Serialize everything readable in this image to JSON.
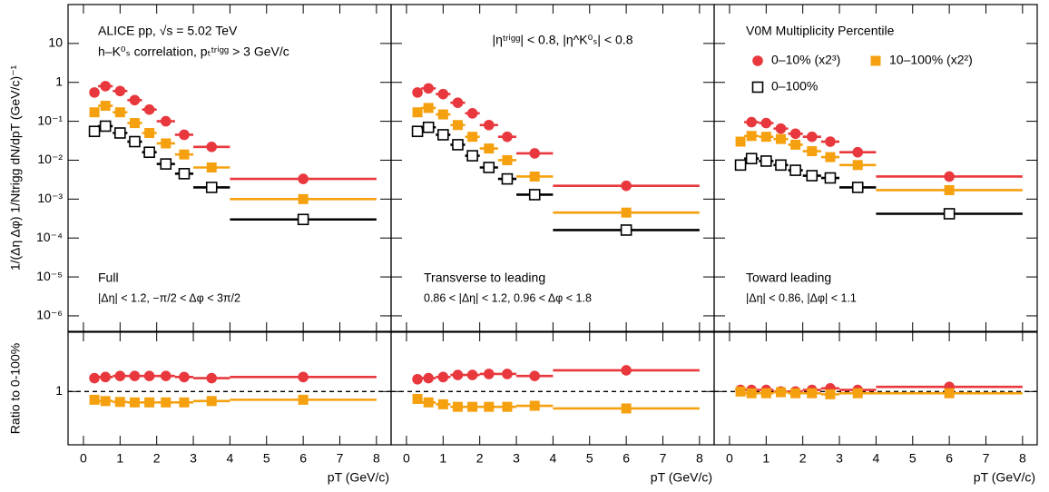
{
  "chart_data": [
    {
      "type": "errorbar",
      "log_y": true,
      "xlim": [
        -0.42,
        8.4
      ],
      "ylim": [
        4e-07,
        100
      ],
      "ylabel": "1/(Δη Δφ) 1/Ntrigg dN/dpT (GeV/c)⁻¹",
      "yticks": [
        {
          "value": 1e-06,
          "label": "10⁻⁶"
        },
        {
          "value": 1e-05,
          "label": "10⁻⁵"
        },
        {
          "value": 0.0001,
          "label": "10⁻⁴"
        },
        {
          "value": 0.001,
          "label": "10⁻³"
        },
        {
          "value": 0.01,
          "label": "10⁻²"
        },
        {
          "value": 0.1,
          "label": "10⁻¹"
        },
        1,
        10
      ],
      "annotations": [
        "ALICE pp, √s = 5.02 TeV",
        "h–K⁰ₛ correlation, pₜᵗʳⁱᵍᵍ > 3 GeV/c",
        "Full",
        "|Δη| < 1.2, −π/2 < Δφ < 3π/2"
      ],
      "bins": [
        0.2,
        0.4,
        0.8,
        1.2,
        1.6,
        2.0,
        2.5,
        3.0,
        4.0,
        8.0
      ],
      "x": [
        0.3,
        0.6,
        1.0,
        1.4,
        1.8,
        2.25,
        2.75,
        3.5,
        6.0
      ],
      "series": [
        {
          "color": "#e8383d",
          "marker": "circle",
          "values": [
            0.55,
            0.8,
            0.6,
            0.35,
            0.2,
            0.1,
            0.045,
            0.022,
            0.0033
          ]
        },
        {
          "color": "#f5a00f",
          "marker": "square",
          "values": [
            0.17,
            0.25,
            0.17,
            0.09,
            0.05,
            0.027,
            0.014,
            0.0065,
            0.001
          ]
        },
        {
          "color": "#000000",
          "marker": "open-square",
          "values": [
            0.055,
            0.075,
            0.05,
            0.03,
            0.016,
            0.008,
            0.0045,
            0.002,
            0.0003
          ]
        }
      ]
    },
    {
      "type": "errorbar",
      "log_y": true,
      "xlim": [
        -0.42,
        8.4
      ],
      "ylim": [
        4e-07,
        100
      ],
      "annotations": [
        "|ηᵗʳⁱᵍᵍ| < 0.8, |η^K⁰ₛ| < 0.8",
        "Transverse to leading",
        "0.86 < |Δη| < 1.2, 0.96 < Δφ < 1.8"
      ],
      "bins": [
        0.2,
        0.4,
        0.8,
        1.2,
        1.6,
        2.0,
        2.5,
        3.0,
        4.0,
        8.0
      ],
      "x": [
        0.3,
        0.6,
        1.0,
        1.4,
        1.8,
        2.25,
        2.75,
        3.5,
        6.0
      ],
      "series": [
        {
          "color": "#e8383d",
          "marker": "circle",
          "values": [
            0.55,
            0.7,
            0.5,
            0.3,
            0.16,
            0.08,
            0.04,
            0.015,
            0.0022
          ]
        },
        {
          "color": "#f5a00f",
          "marker": "square",
          "values": [
            0.17,
            0.22,
            0.15,
            0.08,
            0.04,
            0.02,
            0.01,
            0.0038,
            0.00045
          ]
        },
        {
          "color": "#000000",
          "marker": "open-square",
          "values": [
            0.055,
            0.07,
            0.045,
            0.025,
            0.013,
            0.0065,
            0.0033,
            0.0013,
            0.00016
          ]
        }
      ]
    },
    {
      "type": "errorbar",
      "log_y": true,
      "xlim": [
        -0.42,
        8.4
      ],
      "ylim": [
        4e-07,
        100
      ],
      "legend": "top-right",
      "annotations": [
        "V0M Multiplicity Percentile",
        "Toward leading",
        "|Δη| < 0.86, |Δφ| < 1.1"
      ],
      "bins": [
        0.2,
        0.4,
        0.8,
        1.2,
        1.6,
        2.0,
        2.5,
        3.0,
        4.0,
        8.0
      ],
      "x": [
        0.3,
        0.6,
        1.0,
        1.4,
        1.8,
        2.25,
        2.75,
        3.5,
        6.0
      ],
      "series": [
        {
          "name": "0–10% (x2³)",
          "color": "#e8383d",
          "marker": "circle",
          "values": [
            null,
            0.095,
            0.09,
            0.065,
            0.048,
            0.04,
            0.03,
            0.016,
            0.0038
          ]
        },
        {
          "name": "10–100% (x2²)",
          "color": "#f5a00f",
          "marker": "square",
          "values": [
            0.03,
            0.042,
            0.04,
            0.035,
            0.025,
            0.017,
            0.012,
            0.0075,
            0.0017
          ]
        },
        {
          "name": "0–100%",
          "color": "#000000",
          "marker": "open-square",
          "values": [
            0.0075,
            0.011,
            0.0095,
            0.0075,
            0.0055,
            0.004,
            0.0035,
            0.002,
            0.00042
          ]
        }
      ]
    },
    {
      "type": "errorbar",
      "log_y": true,
      "xlim": [
        -0.42,
        8.4
      ],
      "ylim": [
        0.2,
        6
      ],
      "ylabel": "Ratio to 0-100%",
      "yticks": [
        1
      ],
      "xlabel": "pT (GeV/c)",
      "xticks": [
        0,
        1,
        2,
        3,
        4,
        5,
        6,
        7,
        8
      ],
      "bins": [
        0.2,
        0.4,
        0.8,
        1.2,
        1.6,
        2.0,
        2.5,
        3.0,
        4.0,
        8.0
      ],
      "x": [
        0.3,
        0.6,
        1.0,
        1.4,
        1.8,
        2.25,
        2.75,
        3.5,
        6.0
      ],
      "series": [
        {
          "color": "#e8383d",
          "marker": "circle",
          "values": [
            1.5,
            1.55,
            1.6,
            1.6,
            1.6,
            1.6,
            1.55,
            1.5,
            1.55
          ]
        },
        {
          "color": "#f5a00f",
          "marker": "square",
          "values": [
            0.78,
            0.75,
            0.73,
            0.72,
            0.72,
            0.72,
            0.72,
            0.75,
            0.78
          ]
        }
      ]
    },
    {
      "type": "errorbar",
      "log_y": true,
      "xlim": [
        -0.42,
        8.4
      ],
      "ylim": [
        0.2,
        6
      ],
      "xlabel": "pT (GeV/c)",
      "xticks": [
        0,
        1,
        2,
        3,
        4,
        5,
        6,
        7,
        8
      ],
      "bins": [
        0.2,
        0.4,
        0.8,
        1.2,
        1.6,
        2.0,
        2.5,
        3.0,
        4.0,
        8.0
      ],
      "x": [
        0.3,
        0.6,
        1.0,
        1.4,
        1.8,
        2.25,
        2.75,
        3.5,
        6.0
      ],
      "series": [
        {
          "color": "#e8383d",
          "marker": "circle",
          "values": [
            1.45,
            1.5,
            1.55,
            1.65,
            1.65,
            1.7,
            1.7,
            1.6,
            1.9
          ]
        },
        {
          "color": "#f5a00f",
          "marker": "square",
          "values": [
            0.8,
            0.72,
            0.68,
            0.63,
            0.63,
            0.63,
            0.63,
            0.65,
            0.6
          ]
        }
      ]
    },
    {
      "type": "errorbar",
      "log_y": true,
      "xlim": [
        -0.42,
        8.4
      ],
      "ylim": [
        0.2,
        6
      ],
      "xlabel": "pT (GeV/c)",
      "xticks": [
        0,
        1,
        2,
        3,
        4,
        5,
        6,
        7,
        8
      ],
      "bins": [
        0.2,
        0.4,
        0.8,
        1.2,
        1.6,
        2.0,
        2.5,
        3.0,
        4.0,
        8.0
      ],
      "x": [
        0.3,
        0.6,
        1.0,
        1.4,
        1.8,
        2.25,
        2.75,
        3.5,
        6.0
      ],
      "series": [
        {
          "color": "#e8383d",
          "marker": "circle",
          "values": [
            1.05,
            1.05,
            1.05,
            1.0,
            1.0,
            1.05,
            1.1,
            1.05,
            1.15
          ]
        },
        {
          "color": "#f5a00f",
          "marker": "square",
          "values": [
            1.0,
            0.95,
            0.95,
            0.98,
            0.95,
            0.95,
            0.92,
            0.95,
            0.95
          ]
        }
      ]
    }
  ]
}
